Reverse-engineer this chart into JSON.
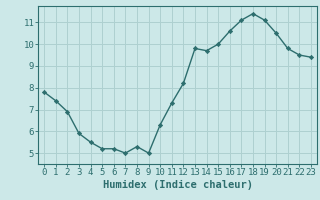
{
  "x": [
    0,
    1,
    2,
    3,
    4,
    5,
    6,
    7,
    8,
    9,
    10,
    11,
    12,
    13,
    14,
    15,
    16,
    17,
    18,
    19,
    20,
    21,
    22,
    23
  ],
  "y": [
    7.8,
    7.4,
    6.9,
    5.9,
    5.5,
    5.2,
    5.2,
    5.0,
    5.3,
    5.0,
    6.3,
    7.3,
    8.2,
    9.8,
    9.7,
    10.0,
    10.6,
    11.1,
    11.4,
    11.1,
    10.5,
    9.8,
    9.5,
    9.4
  ],
  "xlabel": "Humidex (Indice chaleur)",
  "xlim": [
    -0.5,
    23.5
  ],
  "ylim": [
    4.5,
    11.75
  ],
  "yticks": [
    5,
    6,
    7,
    8,
    9,
    10,
    11
  ],
  "xticks": [
    0,
    1,
    2,
    3,
    4,
    5,
    6,
    7,
    8,
    9,
    10,
    11,
    12,
    13,
    14,
    15,
    16,
    17,
    18,
    19,
    20,
    21,
    22,
    23
  ],
  "line_color": "#2d6e6e",
  "marker": "D",
  "marker_size": 2.2,
  "bg_color": "#cce8e8",
  "grid_color": "#aed0d0",
  "tick_color": "#2d6e6e",
  "label_color": "#2d6e6e",
  "xlabel_fontsize": 7.5,
  "tick_fontsize": 6.5
}
